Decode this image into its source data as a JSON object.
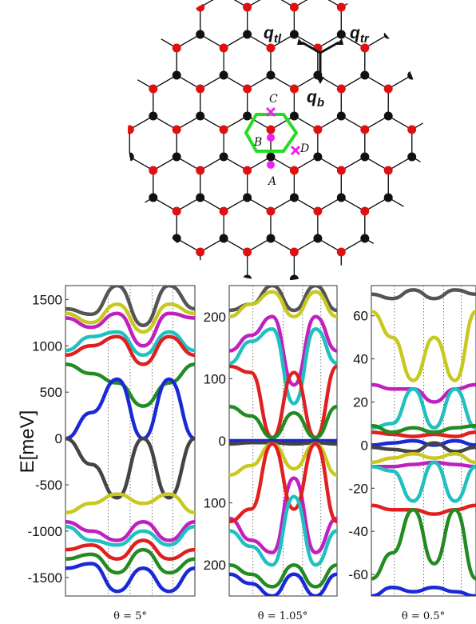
{
  "lattice": {
    "vectors": [
      {
        "id": "qtl",
        "main": "q",
        "sub": "tl"
      },
      {
        "id": "qtr",
        "main": "q",
        "sub": "tr"
      },
      {
        "id": "qb",
        "main": "q",
        "sub": "b"
      }
    ],
    "points": [
      "A",
      "B",
      "C",
      "D"
    ],
    "colors": {
      "site_a": "#e01010",
      "site_b": "#111111",
      "hex": "#22dd22",
      "marker": "#ee22ee"
    }
  },
  "ylabel": "E[meV]",
  "chart_data": [
    {
      "type": "line",
      "caption": "θ = 5°",
      "ylim": [
        -1700,
        1650
      ],
      "yticks": [
        1500,
        1000,
        500,
        0,
        -500,
        -1000,
        -1500
      ],
      "grid": "vertical dotted lines at high-symmetry points",
      "series": [
        {
          "color": "#555555",
          "values": [
            1400,
            1340,
            1650,
            1220,
            1650,
            1400
          ]
        },
        {
          "color": "#c8c820",
          "values": [
            1350,
            1250,
            1450,
            1150,
            1450,
            1350
          ]
        },
        {
          "color": "#c020c0",
          "values": [
            1300,
            1200,
            1350,
            1000,
            1350,
            1300
          ]
        },
        {
          "color": "#20c0c0",
          "values": [
            950,
            1100,
            1150,
            900,
            1150,
            950
          ]
        },
        {
          "color": "#e02020",
          "values": [
            900,
            1000,
            1100,
            800,
            1100,
            900
          ]
        },
        {
          "color": "#228b22",
          "values": [
            800,
            700,
            600,
            350,
            600,
            800
          ]
        },
        {
          "color": "#1a28d8",
          "values": [
            0,
            280,
            640,
            0,
            640,
            0
          ]
        },
        {
          "color": "#444444",
          "values": [
            0,
            -280,
            -640,
            0,
            -640,
            0
          ]
        },
        {
          "color": "#c8c820",
          "values": [
            -800,
            -700,
            -600,
            -700,
            -600,
            -800
          ]
        },
        {
          "color": "#c020c0",
          "values": [
            -900,
            -1000,
            -1100,
            -900,
            -1100,
            -900
          ]
        },
        {
          "color": "#20c0c0",
          "values": [
            -950,
            -1100,
            -1150,
            -1000,
            -1150,
            -950
          ]
        },
        {
          "color": "#e02020",
          "values": [
            -1200,
            -1150,
            -1300,
            -1100,
            -1300,
            -1200
          ]
        },
        {
          "color": "#228b22",
          "values": [
            -1300,
            -1250,
            -1450,
            -1200,
            -1450,
            -1300
          ]
        },
        {
          "color": "#1a28d8",
          "values": [
            -1400,
            -1350,
            -1650,
            -1400,
            -1650,
            -1400
          ]
        }
      ]
    },
    {
      "type": "line",
      "caption": "θ = 1.05°",
      "ylim": [
        -250,
        250
      ],
      "yticks": [
        200,
        100,
        0,
        -100,
        -200
      ],
      "tick_labels": [
        "200",
        "100",
        "0",
        "100",
        "200"
      ],
      "grid": "vertical dotted lines at high-symmetry points",
      "series": [
        {
          "color": "#555555",
          "values": [
            210,
            220,
            250,
            210,
            250,
            210
          ]
        },
        {
          "color": "#c8c820",
          "values": [
            200,
            220,
            240,
            200,
            240,
            200
          ]
        },
        {
          "color": "#c020c0",
          "values": [
            145,
            170,
            200,
            90,
            200,
            145
          ]
        },
        {
          "color": "#20c0c0",
          "values": [
            125,
            160,
            180,
            60,
            180,
            125
          ]
        },
        {
          "color": "#e02020",
          "values": [
            120,
            110,
            5,
            110,
            5,
            120
          ]
        },
        {
          "color": "#228b22",
          "values": [
            55,
            40,
            5,
            45,
            5,
            55
          ]
        },
        {
          "color": "#1a28d8",
          "values": [
            0,
            0,
            0,
            0,
            0,
            0
          ]
        },
        {
          "color": "#444444",
          "values": [
            -5,
            -3,
            -3,
            -5,
            -3,
            -5
          ]
        },
        {
          "color": "#c8c820",
          "values": [
            -55,
            -40,
            -5,
            -45,
            -5,
            -55
          ]
        },
        {
          "color": "#c020c0",
          "values": [
            -125,
            -160,
            -180,
            -60,
            -180,
            -125
          ]
        },
        {
          "color": "#e02020",
          "values": [
            -130,
            -110,
            -5,
            -110,
            -5,
            -130
          ]
        },
        {
          "color": "#20c0c0",
          "values": [
            -145,
            -170,
            -200,
            -90,
            -200,
            -145
          ]
        },
        {
          "color": "#228b22",
          "values": [
            -200,
            -215,
            -235,
            -200,
            -235,
            -200
          ]
        },
        {
          "color": "#1a28d8",
          "values": [
            -215,
            -230,
            -250,
            -215,
            -250,
            -215
          ]
        }
      ]
    },
    {
      "type": "line",
      "caption": "θ = 0.5°",
      "ylim": [
        -70,
        74
      ],
      "yticks": [
        60,
        40,
        20,
        0,
        -20,
        -40,
        -60
      ],
      "grid": "vertical dotted lines at high-symmetry points",
      "series": [
        {
          "color": "#555555",
          "values": [
            70,
            68,
            72,
            68,
            72,
            70
          ]
        },
        {
          "color": "#c8c820",
          "values": [
            62,
            50,
            30,
            50,
            30,
            62
          ]
        },
        {
          "color": "#c020c0",
          "values": [
            28,
            26,
            26,
            20,
            26,
            28
          ]
        },
        {
          "color": "#20c0c0",
          "values": [
            8,
            10,
            26,
            8,
            26,
            8
          ]
        },
        {
          "color": "#e02020",
          "values": [
            6,
            5,
            4,
            5,
            4,
            6
          ]
        },
        {
          "color": "#228b22",
          "values": [
            9,
            6,
            8,
            6,
            8,
            9
          ]
        },
        {
          "color": "#1a28d8",
          "values": [
            0,
            1,
            2,
            0,
            2,
            0
          ]
        },
        {
          "color": "#444444",
          "values": [
            -1,
            -2,
            -3,
            1,
            -3,
            -1
          ]
        },
        {
          "color": "#c8c820",
          "values": [
            -8,
            -6,
            -4,
            -6,
            -4,
            -8
          ]
        },
        {
          "color": "#c020c0",
          "values": [
            -10,
            -10,
            -9,
            -8,
            -9,
            -10
          ]
        },
        {
          "color": "#20c0c0",
          "values": [
            -10,
            -12,
            -26,
            -8,
            -26,
            -10
          ]
        },
        {
          "color": "#e02020",
          "values": [
            -28,
            -30,
            -30,
            -32,
            -30,
            -28
          ]
        },
        {
          "color": "#228b22",
          "values": [
            -62,
            -50,
            -30,
            -55,
            -30,
            -62
          ]
        },
        {
          "color": "#1a28d8",
          "values": [
            -70,
            -66,
            -68,
            -66,
            -68,
            -70
          ]
        }
      ]
    }
  ]
}
